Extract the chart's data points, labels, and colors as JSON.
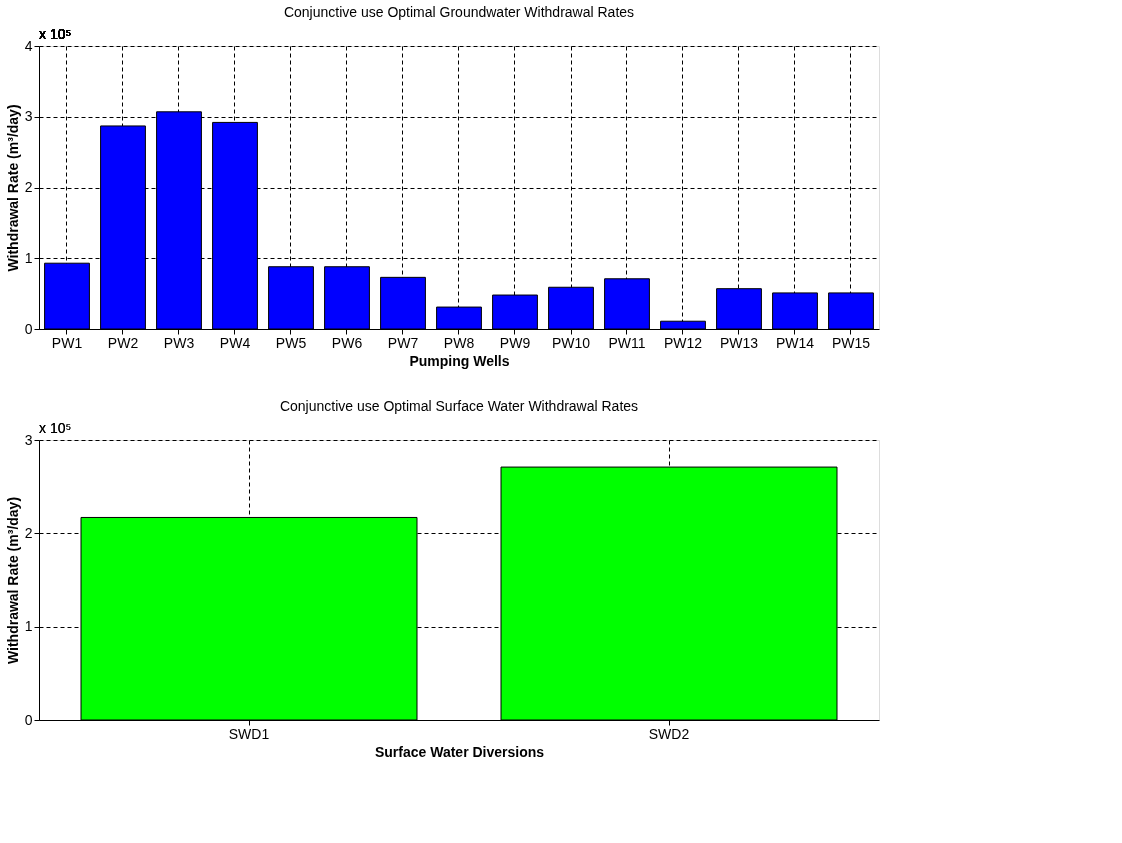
{
  "chart_data": [
    {
      "type": "bar",
      "title": "Conjunctive use Optimal Groundwater Withdrawal Rates",
      "xlabel": "Pumping Wells",
      "ylabel": "Withdrawal Rate (m³/day)",
      "annotations": [
        "x 10⁵"
      ],
      "categories": [
        "PW1",
        "PW2",
        "PW3",
        "PW4",
        "PW5",
        "PW6",
        "PW7",
        "PW8",
        "PW9",
        "PW10",
        "PW11",
        "PW12",
        "PW13",
        "PW14",
        "PW15"
      ],
      "values": [
        0.93,
        2.87,
        3.07,
        2.92,
        0.88,
        0.88,
        0.73,
        0.31,
        0.48,
        0.59,
        0.71,
        0.11,
        0.57,
        0.51,
        0.51
      ],
      "color": "#0000ff",
      "ylim": [
        0,
        4
      ],
      "yticks": [
        0,
        1,
        2,
        3,
        4
      ],
      "grid": true
    },
    {
      "type": "bar",
      "title": "Conjunctive use Optimal Surface Water Withdrawal Rates",
      "xlabel": "Surface Water Diversions",
      "ylabel": "Withdrawal Rate (m³/day)",
      "annotations": [
        "x 10⁵"
      ],
      "categories": [
        "SWD1",
        "SWD2"
      ],
      "values": [
        2.17,
        2.71
      ],
      "color": "#00ff00",
      "ylim": [
        0,
        3
      ],
      "yticks": [
        0,
        1,
        2,
        3
      ],
      "grid": true
    }
  ]
}
